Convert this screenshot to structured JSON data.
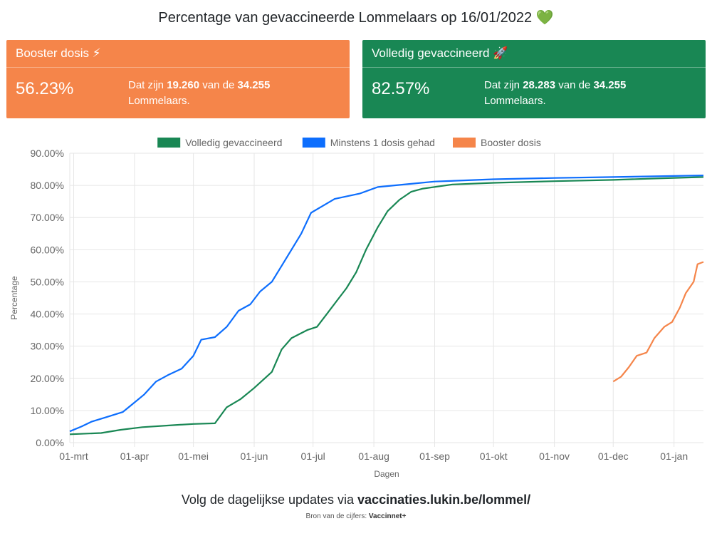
{
  "header": {
    "title": "Percentage van gevaccineerde Lommelaars op 16/01/2022",
    "title_emoji": "💚"
  },
  "cards": {
    "booster": {
      "title": "Booster dosis",
      "icon": "⚡",
      "pct": "56.23%",
      "text_pre": "Dat zijn ",
      "count": "19.260",
      "text_mid": " van de ",
      "total": "34.255",
      "text_post": "Lommelaars."
    },
    "full": {
      "title": "Volledig gevaccineerd",
      "icon": "🚀",
      "pct": "82.57%",
      "text_pre": "Dat zijn ",
      "count": "28.283",
      "text_mid": " van de ",
      "total": "34.255",
      "text_post": "Lommelaars."
    }
  },
  "colors": {
    "green": "#198754",
    "blue": "#0d6efd",
    "orange": "#f5854a"
  },
  "chart_data": {
    "type": "line",
    "xlabel": "Dagen",
    "ylabel": "Percentage",
    "ylim": [
      0,
      90
    ],
    "ytick_labels": [
      "0.00%",
      "10.00%",
      "20.00%",
      "30.00%",
      "40.00%",
      "50.00%",
      "60.00%",
      "70.00%",
      "80.00%",
      "90.00%"
    ],
    "xtick_labels": [
      "01-mrt",
      "01-apr",
      "01-mei",
      "01-jun",
      "01-jul",
      "01-aug",
      "01-sep",
      "01-okt",
      "01-nov",
      "01-dec",
      "01-jan"
    ],
    "x_range": [
      "2021-02-27",
      "2022-01-16"
    ],
    "grid": true,
    "legend_position": "top",
    "series": [
      {
        "name": "Volledig gevaccineerd",
        "color": "#198754",
        "points": [
          [
            "2021-02-27",
            2.6
          ],
          [
            "2021-03-15",
            3.0
          ],
          [
            "2021-03-25",
            4.0
          ],
          [
            "2021-04-05",
            4.8
          ],
          [
            "2021-04-20",
            5.4
          ],
          [
            "2021-05-01",
            5.8
          ],
          [
            "2021-05-12",
            6.0
          ],
          [
            "2021-05-18",
            11.0
          ],
          [
            "2021-05-25",
            13.5
          ],
          [
            "2021-06-01",
            17.0
          ],
          [
            "2021-06-10",
            22.0
          ],
          [
            "2021-06-15",
            29.0
          ],
          [
            "2021-06-20",
            32.5
          ],
          [
            "2021-06-28",
            35.0
          ],
          [
            "2021-07-03",
            36.0
          ],
          [
            "2021-07-08",
            40.0
          ],
          [
            "2021-07-13",
            44.0
          ],
          [
            "2021-07-18",
            48.0
          ],
          [
            "2021-07-23",
            53.0
          ],
          [
            "2021-07-28",
            60.0
          ],
          [
            "2021-08-03",
            67.0
          ],
          [
            "2021-08-08",
            72.0
          ],
          [
            "2021-08-14",
            75.5
          ],
          [
            "2021-08-20",
            78.0
          ],
          [
            "2021-08-26",
            79.0
          ],
          [
            "2021-09-10",
            80.3
          ],
          [
            "2021-10-01",
            80.8
          ],
          [
            "2021-11-01",
            81.3
          ],
          [
            "2021-12-01",
            81.7
          ],
          [
            "2021-12-20",
            82.1
          ],
          [
            "2022-01-16",
            82.6
          ]
        ]
      },
      {
        "name": "Minstens 1 dosis gehad",
        "color": "#0d6efd",
        "points": [
          [
            "2021-02-27",
            3.5
          ],
          [
            "2021-03-05",
            5.0
          ],
          [
            "2021-03-10",
            6.5
          ],
          [
            "2021-03-18",
            8.0
          ],
          [
            "2021-03-26",
            9.5
          ],
          [
            "2021-03-31",
            12.0
          ],
          [
            "2021-04-06",
            15.0
          ],
          [
            "2021-04-12",
            19.0
          ],
          [
            "2021-04-18",
            21.0
          ],
          [
            "2021-04-25",
            23.0
          ],
          [
            "2021-05-01",
            27.0
          ],
          [
            "2021-05-05",
            32.0
          ],
          [
            "2021-05-12",
            32.8
          ],
          [
            "2021-05-18",
            36.0
          ],
          [
            "2021-05-24",
            41.0
          ],
          [
            "2021-05-30",
            43.0
          ],
          [
            "2021-06-04",
            47.0
          ],
          [
            "2021-06-10",
            50.0
          ],
          [
            "2021-06-15",
            55.0
          ],
          [
            "2021-06-20",
            60.0
          ],
          [
            "2021-06-25",
            65.0
          ],
          [
            "2021-06-30",
            71.5
          ],
          [
            "2021-07-07",
            74.0
          ],
          [
            "2021-07-12",
            75.8
          ],
          [
            "2021-07-25",
            77.5
          ],
          [
            "2021-08-03",
            79.5
          ],
          [
            "2021-08-20",
            80.5
          ],
          [
            "2021-09-01",
            81.2
          ],
          [
            "2021-10-01",
            81.9
          ],
          [
            "2021-11-01",
            82.3
          ],
          [
            "2021-12-01",
            82.6
          ],
          [
            "2022-01-16",
            83.1
          ]
        ]
      },
      {
        "name": "Booster dosis",
        "color": "#f5854a",
        "points": [
          [
            "2021-12-01",
            19.0
          ],
          [
            "2021-12-05",
            20.5
          ],
          [
            "2021-12-09",
            23.5
          ],
          [
            "2021-12-13",
            27.0
          ],
          [
            "2021-12-18",
            28.0
          ],
          [
            "2021-12-22",
            32.5
          ],
          [
            "2021-12-27",
            36.0
          ],
          [
            "2021-12-31",
            37.5
          ],
          [
            "2022-01-04",
            42.0
          ],
          [
            "2022-01-07",
            46.5
          ],
          [
            "2022-01-11",
            50.0
          ],
          [
            "2022-01-13",
            55.5
          ],
          [
            "2022-01-16",
            56.2
          ]
        ]
      }
    ]
  },
  "footer": {
    "text": "Volg de dagelijkse updates via ",
    "link": "vaccinaties.lukin.be/lommel/"
  },
  "source": {
    "text": "Bron van de cijfers: ",
    "name": "Vaccinnet+"
  }
}
